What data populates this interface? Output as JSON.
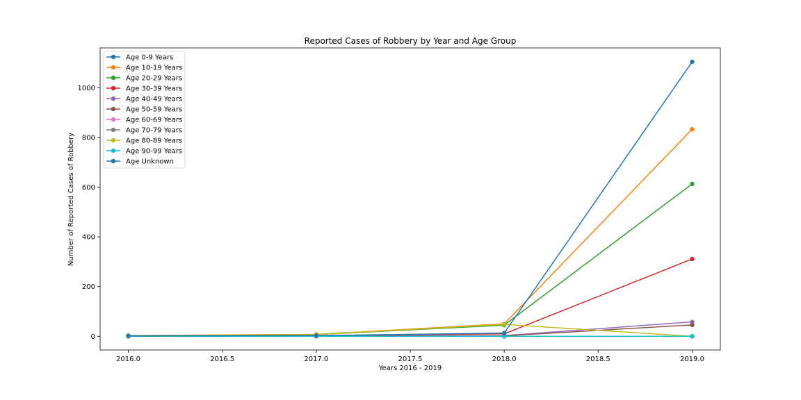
{
  "chart_data": {
    "type": "line",
    "title": "Reported Cases of Robbery by Year and Age Group",
    "xlabel": "Years 2016 - 2019",
    "ylabel": "Number of Reported Cases of Robbery",
    "x": [
      2016,
      2017,
      2018,
      2019
    ],
    "xlim": [
      2015.85,
      2019.15
    ],
    "ylim": [
      -55,
      1160
    ],
    "xticks": [
      2016.0,
      2016.5,
      2017.0,
      2017.5,
      2018.0,
      2018.5,
      2019.0
    ],
    "xtick_labels": [
      "2016.0",
      "2016.5",
      "2017.0",
      "2017.5",
      "2018.0",
      "2018.5",
      "2019.0"
    ],
    "yticks": [
      0,
      200,
      400,
      600,
      800,
      1000
    ],
    "ytick_labels": [
      "0",
      "200",
      "400",
      "600",
      "800",
      "1000"
    ],
    "grid": false,
    "legend_position": "top-left",
    "series": [
      {
        "name": "Age 0-9 Years",
        "color": "#1f77b4",
        "values": [
          0,
          0,
          0,
          0
        ]
      },
      {
        "name": "Age 10-19 Years",
        "color": "#ff7f0e",
        "values": [
          3,
          8,
          50,
          833
        ]
      },
      {
        "name": "Age 20-29 Years",
        "color": "#2ca02c",
        "values": [
          2,
          7,
          45,
          613
        ]
      },
      {
        "name": "Age 30-39 Years",
        "color": "#d62728",
        "values": [
          1,
          2,
          10,
          311
        ]
      },
      {
        "name": "Age 40-49 Years",
        "color": "#9467bd",
        "values": [
          0,
          1,
          3,
          58
        ]
      },
      {
        "name": "Age 50-59 Years",
        "color": "#8c564b",
        "values": [
          0,
          1,
          2,
          46
        ]
      },
      {
        "name": "Age 60-69 Years",
        "color": "#e377c2",
        "values": [
          0,
          0,
          0,
          0
        ]
      },
      {
        "name": "Age 70-79 Years",
        "color": "#7f7f7f",
        "values": [
          0,
          0,
          0,
          0
        ]
      },
      {
        "name": "Age 80-89 Years",
        "color": "#bcbd22",
        "values": [
          3,
          7,
          48,
          0
        ]
      },
      {
        "name": "Age 90-99 Years",
        "color": "#17becf",
        "values": [
          0,
          0,
          0,
          0
        ]
      },
      {
        "name": "Age Unknown",
        "color": "#1f77b4",
        "values": [
          2,
          3,
          13,
          1104
        ]
      }
    ]
  }
}
